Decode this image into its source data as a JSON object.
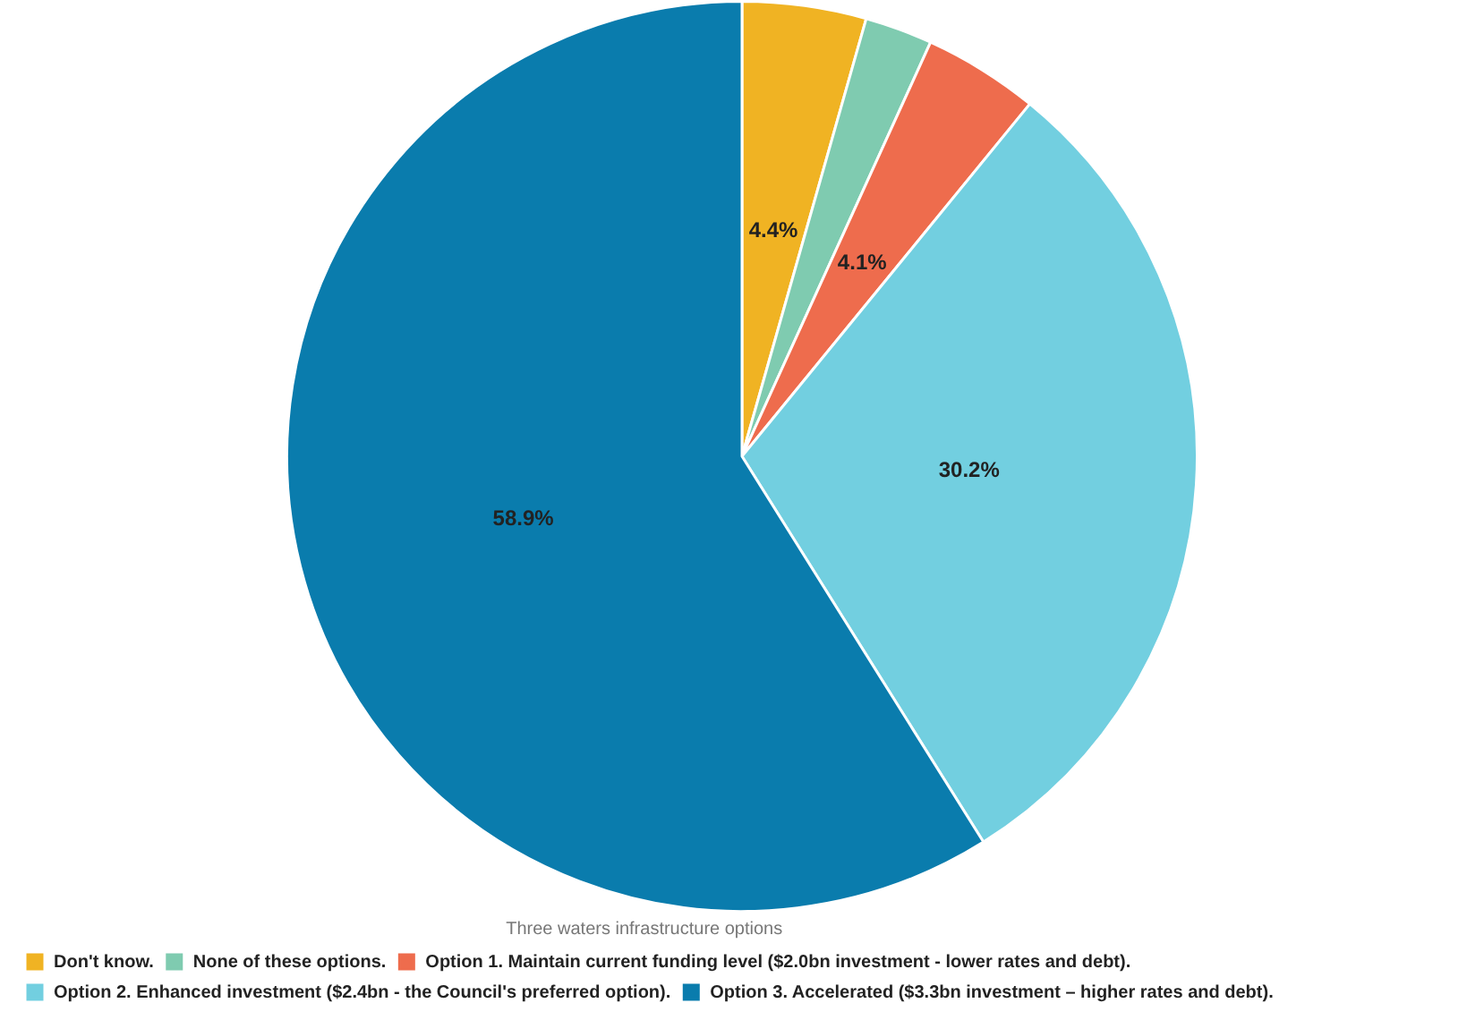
{
  "chart_data": {
    "type": "pie",
    "legend_title": "Three waters infrastructure options",
    "categories": [
      "Don't know.",
      "None of these options.",
      "Option 1. Maintain current funding level ($2.0bn investment - lower rates and debt).",
      "Option 2. Enhanced investment ($2.4bn - the Council's preferred option).",
      "Option 3. Accelerated ($3.3bn investment – higher rates and debt)."
    ],
    "values": [
      4.4,
      2.4,
      4.1,
      30.2,
      58.9
    ],
    "colors": [
      "#f0b323",
      "#7fcbb0",
      "#ee6c4d",
      "#72cfe0",
      "#0a7cad"
    ],
    "value_labels": [
      "4.4%",
      null,
      "4.1%",
      "30.2%",
      "58.9%"
    ],
    "legend": "bottom left"
  }
}
